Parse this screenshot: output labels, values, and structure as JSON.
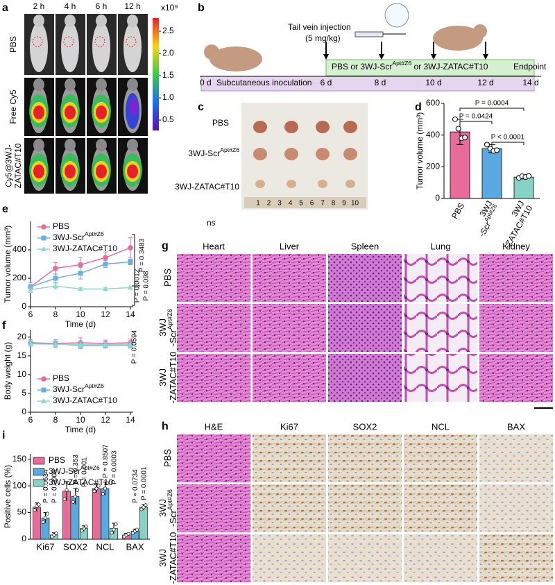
{
  "panel_labels": [
    "a",
    "b",
    "c",
    "d",
    "e",
    "f",
    "g",
    "h",
    "i"
  ],
  "imaging": {
    "times": [
      "2 h",
      "4 h",
      "6 h",
      "12 h"
    ],
    "groups": [
      {
        "line1": "PBS"
      },
      {
        "line1": "Free Cy5"
      },
      {
        "line1": "Cy5@3WJ-",
        "line2": "ZATAC#T10"
      }
    ],
    "colorbar": {
      "unit": "x10⁹",
      "labels": [
        "2.5",
        "2.0",
        "1.5",
        "1.0",
        "0.5"
      ]
    }
  },
  "schedule": {
    "injection": "Tail vein injection",
    "dose": "(5 mg/kg)",
    "treatment": {
      "before": "PBS or 3WJ-Scr",
      "sup": "Apt#Z6",
      "after": " or 3WJ-ZATAC#T10"
    },
    "endpoint": "Endpoint",
    "start": "0 d",
    "inoculation": "Subcutaneous inoculation",
    "days": [
      "6 d",
      "8 d",
      "10 d",
      "12 d",
      "14 d"
    ]
  },
  "tumor_photo": {
    "groups": [
      {
        "text": "PBS"
      },
      {
        "text": "3WJ-Scr",
        "sup": "Apt#Z6"
      },
      {
        "text": "3WJ-ZATAC#T10"
      }
    ],
    "ruler": [
      "1",
      "2",
      "3",
      "4",
      "5",
      "6",
      "7",
      "8",
      "9",
      "10"
    ]
  },
  "ns_label": "ns",
  "he_staining": {
    "columns": [
      "Heart",
      "Liver",
      "Spleen",
      "Lung",
      "Kidney"
    ],
    "groups": [
      {
        "line1": "PBS"
      },
      {
        "line1": "3WJ",
        "line2": "-Scr",
        "sup": "Apt#Z6"
      },
      {
        "line1": "3WJ",
        "line2": "-ZATAC#T10"
      }
    ]
  },
  "ihc_staining": {
    "columns": [
      "H&E",
      "Ki67",
      "SOX2",
      "NCL",
      "BAX"
    ],
    "groups": [
      {
        "line1": "PBS"
      },
      {
        "line1": "3WJ",
        "line2": "-Scr",
        "sup": "Apt#Z6"
      },
      {
        "line1": "3WJ",
        "line2": "-ZATAC#T10"
      }
    ]
  },
  "chart_data": [
    {
      "type": "bar",
      "ylabel": "Tumor volume (mm³)",
      "categories": [
        {
          "line1": "PBS"
        },
        {
          "line1": "3WJ",
          "line2": "-Scr",
          "sup": "Apt#Z6"
        },
        {
          "line1": "3WJ",
          "line2": "-ZATAC#T10"
        }
      ],
      "values": [
        420,
        315,
        135
      ],
      "errors": [
        80,
        25,
        12
      ],
      "points": [
        [
          500,
          440,
          380,
          385
        ],
        [
          340,
          315,
          300,
          305
        ],
        [
          130,
          140,
          135,
          142
        ]
      ],
      "colors": [
        "#e86b9a",
        "#5aa9e0",
        "#86d3c6"
      ],
      "ylim": [
        0,
        600
      ],
      "yticks": [
        0,
        200,
        400,
        600
      ],
      "annotations": [
        "P = 0.0004",
        "P = 0.0424",
        "P < 0.0001"
      ]
    },
    {
      "type": "line",
      "xlabel": "Time (d)",
      "ylabel": "Tumor volume (mm³)",
      "x": [
        6,
        8,
        10,
        12,
        14
      ],
      "xlim": [
        6,
        14
      ],
      "xticks": [
        6,
        8,
        10,
        12,
        14
      ],
      "ylim": [
        0,
        600
      ],
      "yticks": [
        0,
        200,
        400
      ],
      "legend": "upper left",
      "series": [
        {
          "name": "PBS",
          "color": "#e86b9a",
          "marker": "circle",
          "values": [
            140,
            270,
            295,
            345,
            415
          ],
          "errors": [
            30,
            40,
            50,
            40,
            70
          ]
        },
        {
          "name": "3WJ-Scr",
          "name_sup": "Apt#Z6",
          "color": "#6aaee6",
          "marker": "square",
          "values": [
            140,
            200,
            235,
            300,
            315
          ],
          "errors": [
            30,
            30,
            40,
            25,
            20
          ]
        },
        {
          "name": "3WJ-ZATAC#T10",
          "color": "#8fd8cc",
          "marker": "triangle",
          "values": [
            120,
            145,
            125,
            125,
            135
          ],
          "errors": [
            20,
            20,
            10,
            10,
            10
          ]
        }
      ],
      "annotations": [
        "P = 0.3483",
        "P = 0.0012",
        "P = 0.098"
      ]
    },
    {
      "type": "line",
      "xlabel": "Time (d)",
      "ylabel": "Body weight (g)",
      "x": [
        6,
        8,
        10,
        12,
        14
      ],
      "xlim": [
        6,
        14
      ],
      "xticks": [
        6,
        8,
        10,
        12,
        14
      ],
      "ylim": [
        0,
        22
      ],
      "yticks": [
        0,
        5,
        10,
        15,
        20
      ],
      "legend": "lower left",
      "series": [
        {
          "name": "PBS",
          "color": "#e86b9a",
          "marker": "circle",
          "values": [
            18.5,
            18.3,
            18.5,
            18.3,
            18.5
          ],
          "errors": [
            0.8,
            1.0,
            1.3,
            0.9,
            1.0
          ]
        },
        {
          "name": "3WJ-Scr",
          "name_sup": "Apt#Z6",
          "color": "#6aaee6",
          "marker": "square",
          "values": [
            18.3,
            18.2,
            17.8,
            17.8,
            17.9
          ],
          "errors": [
            0.7,
            0.8,
            0.9,
            0.7,
            0.8
          ]
        },
        {
          "name": "3WJ-ZATAC#T10",
          "color": "#8fd8cc",
          "marker": "triangle",
          "values": [
            18.2,
            18.1,
            18.0,
            18.0,
            18.1
          ],
          "errors": [
            0.6,
            0.6,
            0.7,
            0.6,
            0.6
          ]
        }
      ],
      "annotations": [
        "P = 0.0594"
      ]
    },
    {
      "type": "grouped-bar",
      "ylabel": "Positive cells (%)",
      "categories": [
        "Ki67",
        "SOX2",
        "NCL",
        "BAX"
      ],
      "ylim": [
        0,
        160
      ],
      "yticks": [
        0,
        50,
        100,
        150
      ],
      "legend": "upper left",
      "series": [
        {
          "name": "PBS",
          "color": "#e86b9a",
          "values": [
            60,
            90,
            95,
            8
          ],
          "errors": [
            8,
            18,
            8,
            3
          ],
          "points": [
            [
              55,
              62,
              65
            ],
            [
              75,
              92,
              105
            ],
            [
              90,
              95,
              100
            ],
            [
              5,
              8,
              10
            ]
          ]
        },
        {
          "name": "3WJ-Scr",
          "name_sup": "Apt#Z6",
          "color": "#5aa9e0",
          "values": [
            40,
            80,
            95,
            15
          ],
          "errors": [
            10,
            15,
            12,
            4
          ],
          "points": [
            [
              32,
              40,
              48
            ],
            [
              70,
              80,
              92
            ],
            [
              85,
              95,
              105
            ],
            [
              12,
              15,
              18
            ]
          ]
        },
        {
          "name": "3WJ-ZATAC#T10",
          "color": "#86d3c6",
          "values": [
            8,
            20,
            20,
            60
          ],
          "errors": [
            4,
            5,
            10,
            5
          ],
          "points": [
            [
              5,
              8,
              11
            ],
            [
              16,
              20,
              24
            ],
            [
              12,
              18,
              28
            ],
            [
              56,
              60,
              64
            ]
          ]
        }
      ],
      "annotations": [
        "P = 0.0634",
        "P = 0.0005",
        "P = 0.353",
        "P = 0.001",
        "P = 0.8507",
        "P = 0.0003",
        "P = 0.0734",
        "P = 0.0001"
      ]
    }
  ]
}
